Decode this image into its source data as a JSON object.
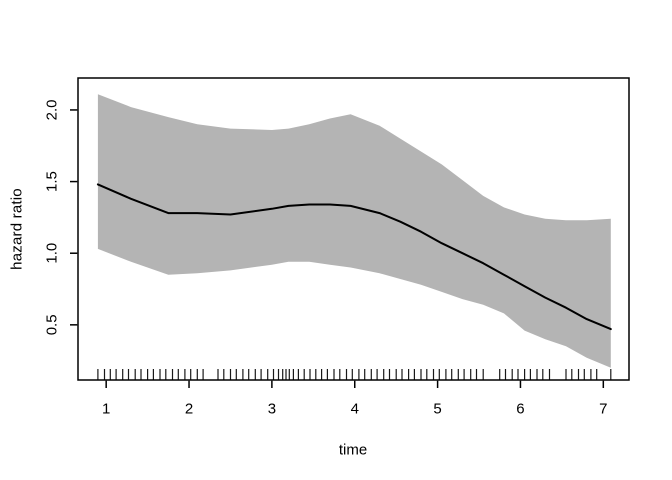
{
  "chart_data": {
    "type": "line",
    "title": "",
    "xlabel": "time",
    "ylabel": "hazard ratio",
    "xlim": [
      0.66,
      7.31
    ],
    "ylim": [
      0.115,
      2.223
    ],
    "x_ticks": [
      "1",
      "2",
      "3",
      "4",
      "5",
      "6",
      "7"
    ],
    "x_tick_values": [
      1,
      2,
      3,
      4,
      5,
      6,
      7
    ],
    "y_ticks": [
      "0.5",
      "1.0",
      "1.5",
      "2.0"
    ],
    "y_tick_values": [
      0.5,
      1.0,
      1.5,
      2.0
    ],
    "grid": false,
    "legend": "none",
    "colors": {
      "band": "#b4b4b4",
      "line": "#000000",
      "axis": "#000000",
      "background": "#ffffff"
    },
    "x": [
      0.9,
      1.3,
      1.75,
      2.1,
      2.5,
      3.0,
      3.2,
      3.45,
      3.7,
      3.95,
      4.3,
      4.55,
      4.8,
      5.05,
      5.3,
      5.55,
      5.8,
      6.05,
      6.3,
      6.55,
      6.8,
      7.09
    ],
    "series": [
      {
        "name": "hazard ratio estimate",
        "role": "estimate",
        "values": [
          1.48,
          1.38,
          1.28,
          1.28,
          1.27,
          1.31,
          1.33,
          1.34,
          1.34,
          1.33,
          1.28,
          1.22,
          1.15,
          1.07,
          1.0,
          0.93,
          0.85,
          0.77,
          0.69,
          0.62,
          0.54,
          0.47
        ]
      },
      {
        "name": "upper confidence limit",
        "role": "band-upper",
        "values": [
          2.11,
          2.02,
          1.95,
          1.9,
          1.87,
          1.86,
          1.87,
          1.9,
          1.94,
          1.97,
          1.89,
          1.8,
          1.71,
          1.62,
          1.51,
          1.4,
          1.32,
          1.27,
          1.24,
          1.23,
          1.23,
          1.24
        ]
      },
      {
        "name": "lower confidence limit",
        "role": "band-lower",
        "values": [
          1.03,
          0.94,
          0.85,
          0.86,
          0.88,
          0.92,
          0.94,
          0.94,
          0.92,
          0.9,
          0.86,
          0.82,
          0.78,
          0.73,
          0.68,
          0.64,
          0.58,
          0.46,
          0.4,
          0.35,
          0.27,
          0.2
        ]
      }
    ],
    "rug_x": [
      0.9,
      0.98,
      1.05,
      1.12,
      1.2,
      1.27,
      1.35,
      1.42,
      1.5,
      1.57,
      1.65,
      1.72,
      1.8,
      1.87,
      1.95,
      2.02,
      2.1,
      2.17,
      2.35,
      2.42,
      2.5,
      2.57,
      2.65,
      2.72,
      2.8,
      2.87,
      2.95,
      3.02,
      3.08,
      3.13,
      3.17,
      3.21,
      3.26,
      3.32,
      3.39,
      3.46,
      3.53,
      3.6,
      3.67,
      3.75,
      3.82,
      3.9,
      3.97,
      4.05,
      4.12,
      4.2,
      4.27,
      4.35,
      4.42,
      4.5,
      4.57,
      4.65,
      4.72,
      4.8,
      4.87,
      4.95,
      5.02,
      5.1,
      5.17,
      5.25,
      5.32,
      5.4,
      5.47,
      5.55,
      5.75,
      5.82,
      5.9,
      5.97,
      6.05,
      6.12,
      6.2,
      6.27,
      6.35,
      6.55,
      6.62,
      6.7,
      6.77,
      6.85,
      6.92,
      7.09
    ]
  }
}
